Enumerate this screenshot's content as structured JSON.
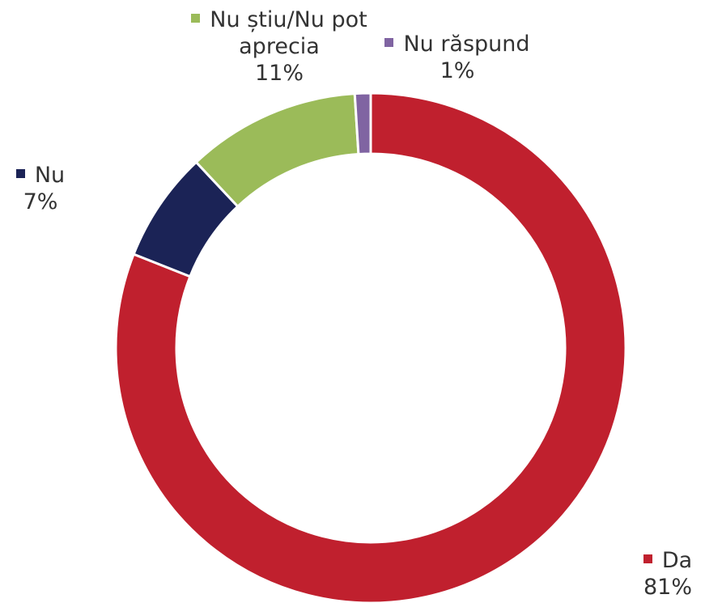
{
  "chart_data": {
    "type": "donut",
    "categories": [
      "Da",
      "Nu",
      "Nu știu/Nu pot aprecia",
      "Nu răspund"
    ],
    "values": [
      81,
      7,
      11,
      1
    ],
    "value_labels": [
      "81%",
      "7%",
      "11%",
      "1%"
    ],
    "colors": [
      "#c0202e",
      "#1b2356",
      "#9bbb59",
      "#8064a2"
    ]
  }
}
